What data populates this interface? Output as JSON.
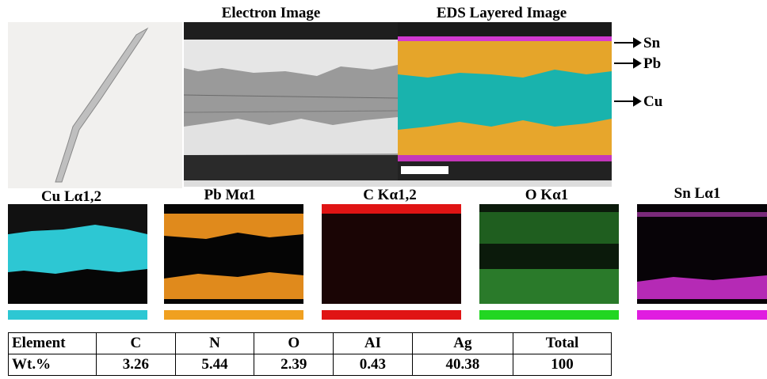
{
  "images": {
    "electron_image": "Electron Image",
    "eds_layered_image": "EDS Layered Image"
  },
  "layer_labels": [
    "Sn",
    "Pb",
    "Cu"
  ],
  "maps": [
    "Cu Lα1,2",
    "Pb Mα1",
    "C Kα1,2",
    "O Kα1",
    "Sn Lα1"
  ],
  "table": {
    "header": [
      "Element",
      "C",
      "N",
      "O",
      "AI",
      "Ag",
      "Total"
    ],
    "rows": [
      [
        "Wt.%",
        "3.26",
        "5.44",
        "2.39",
        "0.43",
        "40.38",
        "100"
      ]
    ]
  }
}
